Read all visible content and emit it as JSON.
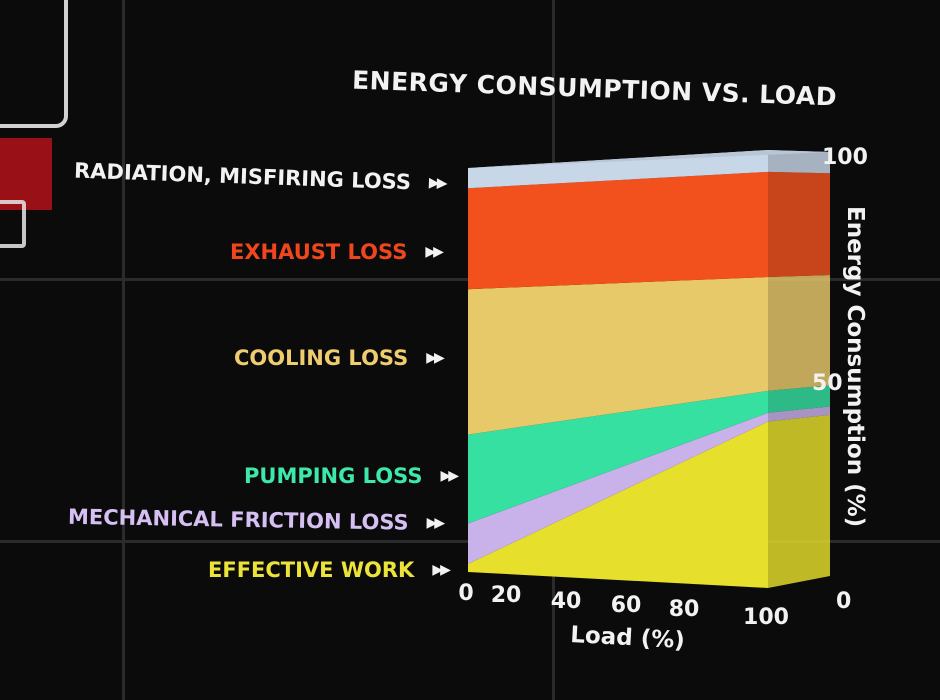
{
  "chart_data": {
    "type": "area",
    "title": "ENERGY CONSUMPTION VS. LOAD",
    "xlabel": "Load (%)",
    "ylabel": "Energy Consumption (%)",
    "x": [
      0,
      100
    ],
    "x_ticks": [
      "0",
      "20",
      "40",
      "60",
      "80",
      "100"
    ],
    "y_ticks": [
      "0",
      "50",
      "100"
    ],
    "ylim": [
      0,
      100
    ],
    "stacked": true,
    "series": [
      {
        "name": "EFFECTIVE WORK",
        "values": [
          2,
          38
        ],
        "color": "#e6df2c"
      },
      {
        "name": "MECHANICAL FRICTION LOSS",
        "values": [
          10,
          2
        ],
        "color": "#c9b2ea"
      },
      {
        "name": "PUMPING LOSS",
        "values": [
          22,
          5
        ],
        "color": "#35e0a1"
      },
      {
        "name": "COOLING LOSS",
        "values": [
          36,
          26
        ],
        "color": "#e8c96a"
      },
      {
        "name": "EXHAUST LOSS",
        "values": [
          25,
          24
        ],
        "color": "#f2501d"
      },
      {
        "name": "RADIATION, MISFIRING LOSS",
        "values": [
          5,
          5
        ],
        "color": "#c8d7e8"
      }
    ],
    "legend": "left"
  }
}
